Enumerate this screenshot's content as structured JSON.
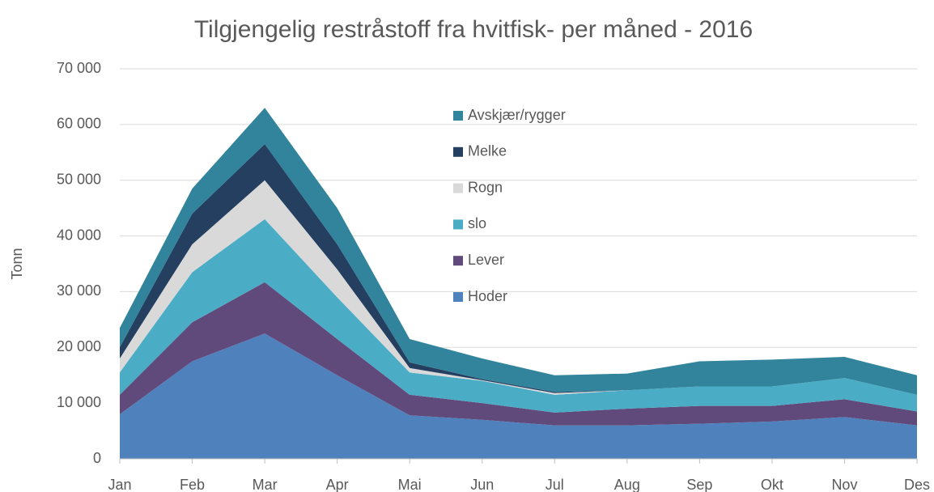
{
  "chart_data": {
    "type": "stacked_area",
    "title": "Tilgjengelig restråstoff fra hvitfisk- per måned - 2016",
    "y_label": "Tonn",
    "categories": [
      "Jan",
      "Feb",
      "Mar",
      "Apr",
      "Mai",
      "Jun",
      "Jul",
      "Aug",
      "Sep",
      "Okt",
      "Nov",
      "Des"
    ],
    "series": [
      {
        "name": "Hoder",
        "color": "#4f81bd",
        "values": [
          8000,
          17500,
          22500,
          15000,
          7800,
          7000,
          6000,
          6000,
          6300,
          6700,
          7500,
          6000
        ]
      },
      {
        "name": "Lever",
        "color": "#604a7b",
        "values": [
          3500,
          7000,
          9200,
          6500,
          3700,
          3000,
          2300,
          3000,
          3200,
          2800,
          3200,
          2500
        ]
      },
      {
        "name": "slo",
        "color": "#4bacc6",
        "values": [
          4000,
          9000,
          11300,
          7500,
          4000,
          4000,
          3200,
          3300,
          3500,
          3500,
          3800,
          3000
        ]
      },
      {
        "name": "Rogn",
        "color": "#d9d9d9",
        "values": [
          2500,
          5000,
          7000,
          5000,
          800,
          100,
          300,
          0,
          0,
          0,
          0,
          0
        ]
      },
      {
        "name": "Melke",
        "color": "#243f60",
        "values": [
          2000,
          5500,
          6500,
          4500,
          1000,
          200,
          200,
          0,
          0,
          0,
          0,
          0
        ]
      },
      {
        "name": "Avskjær/rygger",
        "color": "#31849b",
        "values": [
          3500,
          4500,
          6500,
          6500,
          4200,
          3700,
          3000,
          3000,
          4500,
          4800,
          3800,
          3500
        ]
      }
    ],
    "ylim": [
      0,
      70000
    ],
    "yticks": [
      0,
      {
        "value": 10000,
        "label": "10 000"
      },
      {
        "value": 20000,
        "label": "20 000"
      },
      {
        "value": 30000,
        "label": "30 000"
      },
      {
        "value": 40000,
        "label": "40 000"
      },
      {
        "value": 50000,
        "label": "50 000"
      },
      {
        "value": 60000,
        "label": "60 000"
      },
      {
        "value": 70000,
        "label": "70 000"
      }
    ],
    "grid": true,
    "legend": "inside-top-center"
  }
}
